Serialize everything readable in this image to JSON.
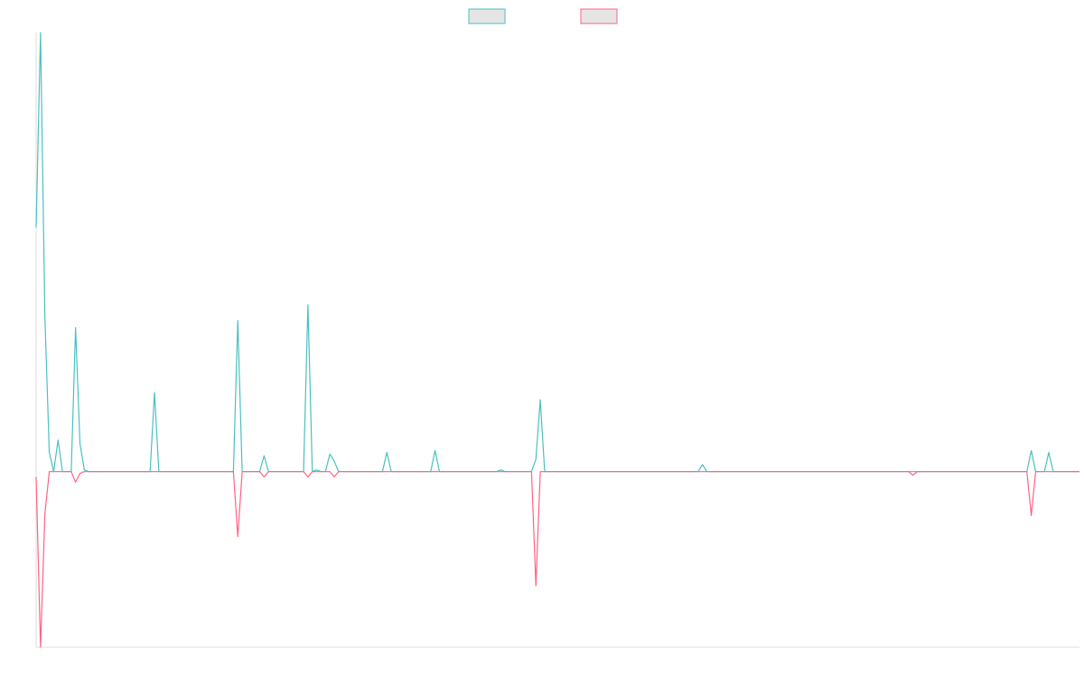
{
  "chart_data": {
    "type": "line",
    "title": "",
    "xlabel": "",
    "ylabel": "",
    "grid": false,
    "legend_position": "top-center",
    "ylim": [
      -100,
      250
    ],
    "x_count": 239,
    "series": [
      {
        "name": "",
        "color": "#4bc0c0",
        "fill": "#e5e5e5",
        "points": [
          [
            0,
            139
          ],
          [
            1,
            250
          ],
          [
            2,
            88
          ],
          [
            3,
            11
          ],
          [
            4,
            0
          ],
          [
            5,
            18
          ],
          [
            6,
            0
          ],
          [
            8,
            0
          ],
          [
            9,
            82
          ],
          [
            10,
            16
          ],
          [
            11,
            1
          ],
          [
            12,
            0
          ],
          [
            26,
            0
          ],
          [
            27,
            45
          ],
          [
            28,
            0
          ],
          [
            45,
            0
          ],
          [
            46,
            86
          ],
          [
            47,
            0
          ],
          [
            51,
            0
          ],
          [
            52,
            9
          ],
          [
            53,
            0
          ],
          [
            61,
            0
          ],
          [
            62,
            95
          ],
          [
            63,
            0
          ],
          [
            64,
            1
          ],
          [
            65,
            0
          ],
          [
            66,
            0
          ],
          [
            67,
            10
          ],
          [
            68,
            6
          ],
          [
            69,
            0
          ],
          [
            79,
            0
          ],
          [
            80,
            11
          ],
          [
            81,
            0
          ],
          [
            90,
            0
          ],
          [
            91,
            12
          ],
          [
            92,
            0
          ],
          [
            105,
            0
          ],
          [
            106,
            1
          ],
          [
            107,
            0
          ],
          [
            113,
            0
          ],
          [
            114,
            7
          ],
          [
            115,
            41
          ],
          [
            116,
            0
          ],
          [
            151,
            0
          ],
          [
            152,
            4
          ],
          [
            153,
            0
          ],
          [
            226,
            0
          ],
          [
            227,
            12
          ],
          [
            228,
            0
          ],
          [
            230,
            0
          ],
          [
            231,
            11
          ],
          [
            232,
            0
          ],
          [
            238,
            0
          ]
        ]
      },
      {
        "name": "",
        "color": "#ff6384",
        "fill": "#e5e5e5",
        "points": [
          [
            0,
            -3
          ],
          [
            1,
            -100
          ],
          [
            2,
            -24
          ],
          [
            3,
            0
          ],
          [
            8,
            0
          ],
          [
            9,
            -6
          ],
          [
            10,
            -1
          ],
          [
            11,
            0
          ],
          [
            45,
            0
          ],
          [
            46,
            -37
          ],
          [
            47,
            0
          ],
          [
            51,
            0
          ],
          [
            52,
            -3
          ],
          [
            53,
            0
          ],
          [
            61,
            0
          ],
          [
            62,
            -3
          ],
          [
            63,
            0
          ],
          [
            67,
            0
          ],
          [
            68,
            -3
          ],
          [
            69,
            0
          ],
          [
            113,
            0
          ],
          [
            114,
            -65
          ],
          [
            115,
            0
          ],
          [
            199,
            0
          ],
          [
            200,
            -2
          ],
          [
            201,
            0
          ],
          [
            226,
            0
          ],
          [
            227,
            -25
          ],
          [
            228,
            0
          ],
          [
            238,
            0
          ]
        ]
      }
    ]
  }
}
